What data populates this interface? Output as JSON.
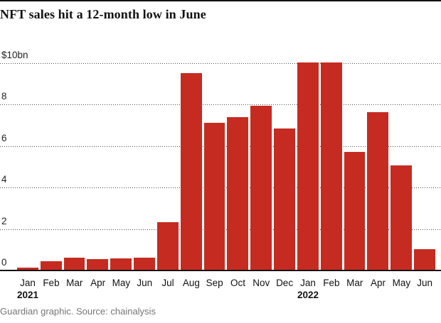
{
  "title": "NFT sales hit a 12-month low in June",
  "footer": "Guardian graphic. Source: chainalysis",
  "colors": {
    "bar": "#c62b21",
    "title_text": "#121212",
    "axis_text": "#232323",
    "gridline": "#4d4d4d",
    "baseline": "#121212",
    "footer_text": "#767676",
    "background": "#ffffff"
  },
  "chart_data": {
    "type": "bar",
    "title": "NFT sales hit a 12-month low in June",
    "unit": "$bn",
    "ylim": [
      0,
      10
    ],
    "grid": "horizontal-dotted",
    "legend": "none",
    "yticks": [
      {
        "label": "$10bn",
        "value": 10
      },
      {
        "label": "8",
        "value": 8
      },
      {
        "label": "6",
        "value": 6
      },
      {
        "label": "4",
        "value": 4
      },
      {
        "label": "2",
        "value": 2
      },
      {
        "label": "0",
        "value": 0
      }
    ],
    "x": [
      {
        "month": "Jan",
        "year": "2021",
        "show_year": true
      },
      {
        "month": "Feb",
        "year": "2021"
      },
      {
        "month": "Mar",
        "year": "2021"
      },
      {
        "month": "Apr",
        "year": "2021"
      },
      {
        "month": "May",
        "year": "2021"
      },
      {
        "month": "Jun",
        "year": "2021"
      },
      {
        "month": "Jul",
        "year": "2021"
      },
      {
        "month": "Aug",
        "year": "2021"
      },
      {
        "month": "Sep",
        "year": "2021"
      },
      {
        "month": "Oct",
        "year": "2021"
      },
      {
        "month": "Nov",
        "year": "2021"
      },
      {
        "month": "Dec",
        "year": "2021"
      },
      {
        "month": "Jan",
        "year": "2022",
        "show_year": true
      },
      {
        "month": "Feb",
        "year": "2022"
      },
      {
        "month": "Mar",
        "year": "2022"
      },
      {
        "month": "Apr",
        "year": "2022"
      },
      {
        "month": "May",
        "year": "2022"
      },
      {
        "month": "Jun",
        "year": "2022"
      }
    ],
    "values": [
      0.1,
      0.4,
      0.6,
      0.5,
      0.55,
      0.6,
      2.3,
      9.5,
      7.1,
      7.35,
      7.9,
      6.8,
      10.0,
      10.0,
      5.7,
      7.6,
      5.05,
      1.0
    ]
  }
}
